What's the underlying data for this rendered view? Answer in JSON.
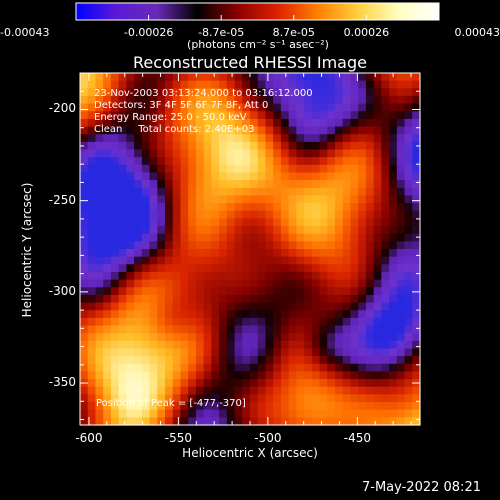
{
  "colorbar": {
    "min": -0.00043,
    "max": 0.00043,
    "tick_labels": [
      "-0.00043",
      "-0.00026",
      "-8.7e-05",
      "8.7e-05",
      "0.00026",
      "0.00043"
    ],
    "unit_label": "(photons cm⁻² s⁻¹ asec⁻²)",
    "colors": [
      "#0000ff",
      "#5a1ad8",
      "#6a2ab8",
      "#000000",
      "#8a0000",
      "#e02000",
      "#ff8000",
      "#ffd040",
      "#ffffc0",
      "#ffffff"
    ]
  },
  "chart_data": {
    "type": "heatmap",
    "title": "Reconstructed RHESSI Image",
    "xlabel": "Heliocentric X (arcsec)",
    "ylabel": "Heliocentric Y (arcsec)",
    "xlim": [
      -605,
      -415
    ],
    "ylim": [
      -373,
      -180
    ],
    "x_ticks": [
      -600,
      -550,
      -500,
      -450
    ],
    "y_ticks": [
      -200,
      -250,
      -300,
      -350
    ],
    "x_tick_labels": [
      "-600",
      "-550",
      "-500",
      "-450"
    ],
    "y_tick_labels": [
      "-200",
      "-250",
      "-300",
      "-350"
    ],
    "annotations": [
      "23-Nov-2003 03:13:24.000 to 03:16:12.000",
      "Detectors: 3F 4F 5F 6F 7F 8F, Att 0",
      "Energy Range: 25.0 - 50.0 keV",
      "Clean     Total counts: 2.40E+03"
    ],
    "peak_label": "Position of Peak = [-477,-370]",
    "peak": [
      -477,
      -370
    ]
  },
  "footer": {
    "date": "7-May-2022 08:21"
  }
}
